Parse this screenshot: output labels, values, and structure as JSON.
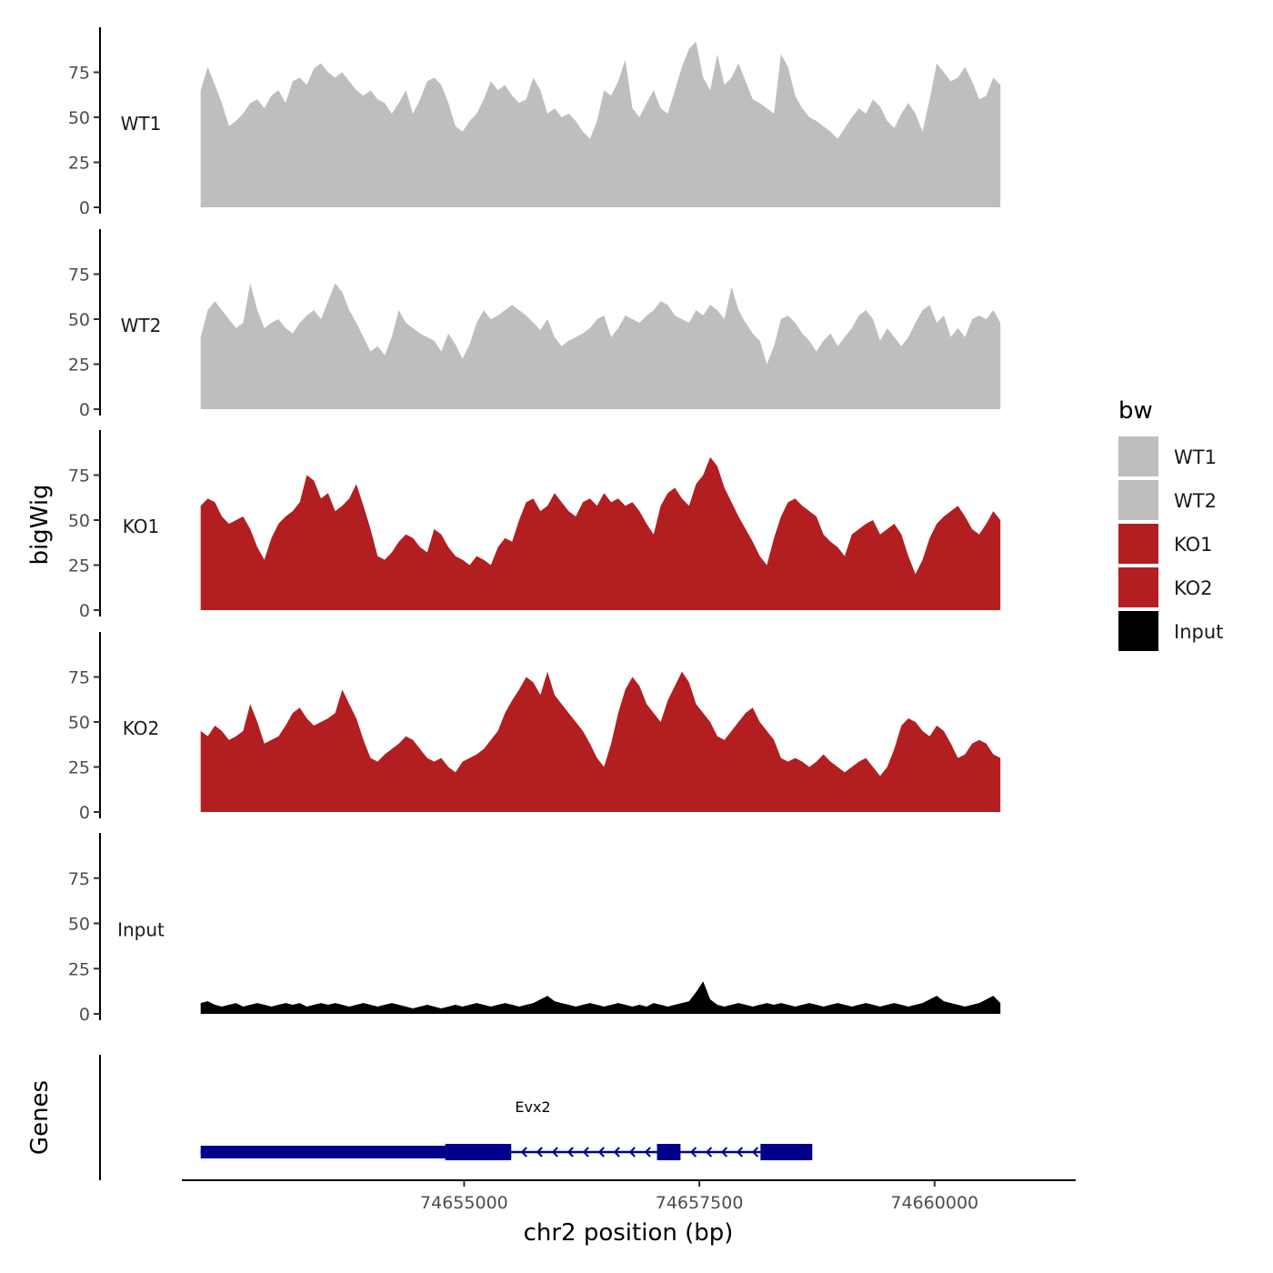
{
  "colors": {
    "wt": "#bebebe",
    "ko": "#b31e21",
    "input": "#000000",
    "gene": "#00008b",
    "axis": "#000000",
    "tick_text": "#4d4d4d"
  },
  "chart_data": {
    "type": "area",
    "xlabel": "chr2 position (bp)",
    "ylabel": "bigWig",
    "genes_label": "Genes",
    "xlim": [
      74652000,
      74661500
    ],
    "ylim": [
      0,
      100
    ],
    "x_ticks": [
      74655000,
      74657500,
      74660000
    ],
    "x_tick_labels": [
      "74655000",
      "74657500",
      "74660000"
    ],
    "y_ticks": [
      0,
      25,
      50,
      75
    ],
    "y_tick_labels": [
      "0",
      "25",
      "50",
      "75"
    ],
    "data_start": 74652200,
    "data_end": 74660700,
    "legend": {
      "title": "bw",
      "entries": [
        {
          "label": "WT1",
          "color": "#bebebe"
        },
        {
          "label": "WT2",
          "color": "#bebebe"
        },
        {
          "label": "KO1",
          "color": "#b31e21"
        },
        {
          "label": "KO2",
          "color": "#b31e21"
        },
        {
          "label": "Input",
          "color": "#000000"
        }
      ]
    },
    "series": [
      {
        "name": "WT1",
        "color": "#bebebe",
        "values": [
          65,
          78,
          68,
          58,
          45,
          48,
          52,
          58,
          60,
          55,
          62,
          65,
          58,
          70,
          72,
          68,
          77,
          80,
          75,
          72,
          75,
          70,
          65,
          62,
          65,
          60,
          58,
          52,
          58,
          65,
          52,
          60,
          70,
          72,
          68,
          58,
          45,
          42,
          48,
          52,
          60,
          70,
          65,
          68,
          62,
          58,
          60,
          72,
          65,
          52,
          55,
          50,
          52,
          48,
          42,
          38,
          48,
          65,
          62,
          70,
          82,
          55,
          50,
          58,
          65,
          55,
          52,
          65,
          78,
          88,
          92,
          72,
          65,
          85,
          68,
          72,
          80,
          70,
          60,
          58,
          55,
          52,
          85,
          78,
          62,
          55,
          50,
          48,
          45,
          42,
          38,
          44,
          50,
          55,
          52,
          60,
          56,
          48,
          44,
          52,
          58,
          52,
          42,
          60,
          80,
          75,
          70,
          72,
          78,
          70,
          60,
          62,
          72,
          68
        ]
      },
      {
        "name": "WT2",
        "color": "#bebebe",
        "values": [
          40,
          55,
          60,
          55,
          50,
          45,
          48,
          70,
          55,
          45,
          48,
          50,
          45,
          42,
          48,
          52,
          55,
          50,
          60,
          70,
          65,
          55,
          48,
          40,
          32,
          35,
          30,
          40,
          55,
          48,
          45,
          42,
          40,
          38,
          32,
          42,
          36,
          28,
          36,
          48,
          55,
          50,
          52,
          55,
          58,
          55,
          52,
          48,
          44,
          50,
          40,
          35,
          38,
          40,
          42,
          45,
          50,
          52,
          40,
          45,
          52,
          50,
          48,
          52,
          55,
          60,
          58,
          52,
          50,
          48,
          55,
          52,
          58,
          55,
          50,
          68,
          55,
          48,
          42,
          38,
          25,
          35,
          50,
          52,
          48,
          42,
          38,
          32,
          38,
          42,
          35,
          40,
          45,
          52,
          55,
          50,
          38,
          45,
          40,
          35,
          40,
          48,
          55,
          58,
          48,
          52,
          40,
          45,
          40,
          50,
          52,
          50,
          55,
          48
        ]
      },
      {
        "name": "KO1",
        "color": "#b31e21",
        "values": [
          58,
          62,
          60,
          52,
          48,
          50,
          52,
          45,
          35,
          28,
          40,
          48,
          52,
          55,
          60,
          75,
          72,
          62,
          65,
          55,
          58,
          62,
          70,
          58,
          45,
          30,
          28,
          32,
          38,
          42,
          40,
          35,
          32,
          45,
          42,
          35,
          30,
          28,
          25,
          30,
          28,
          25,
          35,
          40,
          38,
          50,
          60,
          62,
          55,
          58,
          65,
          60,
          55,
          52,
          60,
          62,
          58,
          65,
          60,
          62,
          58,
          60,
          55,
          48,
          42,
          58,
          65,
          68,
          62,
          58,
          70,
          75,
          85,
          80,
          68,
          60,
          52,
          45,
          38,
          30,
          25,
          40,
          52,
          60,
          62,
          58,
          55,
          52,
          42,
          38,
          35,
          30,
          42,
          45,
          48,
          50,
          42,
          45,
          48,
          42,
          30,
          20,
          28,
          40,
          48,
          52,
          55,
          58,
          52,
          45,
          42,
          48,
          55,
          50
        ]
      },
      {
        "name": "KO2",
        "color": "#b31e21",
        "values": [
          45,
          42,
          48,
          45,
          40,
          42,
          45,
          60,
          50,
          38,
          40,
          42,
          48,
          55,
          58,
          52,
          48,
          50,
          52,
          55,
          68,
          60,
          52,
          40,
          30,
          28,
          32,
          35,
          38,
          42,
          40,
          35,
          30,
          28,
          30,
          25,
          22,
          28,
          30,
          32,
          35,
          40,
          45,
          55,
          62,
          68,
          75,
          72,
          65,
          78,
          65,
          60,
          55,
          50,
          45,
          38,
          30,
          25,
          38,
          55,
          68,
          75,
          70,
          60,
          55,
          50,
          62,
          70,
          78,
          72,
          60,
          55,
          50,
          42,
          40,
          45,
          50,
          55,
          58,
          50,
          45,
          40,
          30,
          28,
          30,
          28,
          25,
          28,
          32,
          28,
          25,
          22,
          25,
          28,
          30,
          25,
          20,
          25,
          35,
          48,
          52,
          50,
          45,
          42,
          48,
          45,
          38,
          30,
          32,
          38,
          40,
          38,
          32,
          30
        ]
      },
      {
        "name": "Input",
        "color": "#000000",
        "values": [
          6,
          7,
          5,
          4,
          5,
          6,
          4,
          5,
          6,
          5,
          4,
          5,
          6,
          5,
          6,
          4,
          5,
          6,
          5,
          6,
          5,
          4,
          5,
          6,
          5,
          4,
          5,
          6,
          5,
          4,
          3,
          4,
          5,
          4,
          3,
          4,
          5,
          4,
          5,
          6,
          5,
          4,
          5,
          6,
          5,
          4,
          5,
          6,
          8,
          10,
          7,
          6,
          5,
          4,
          5,
          6,
          5,
          4,
          5,
          6,
          5,
          4,
          5,
          4,
          6,
          5,
          4,
          5,
          6,
          7,
          12,
          18,
          8,
          5,
          4,
          5,
          6,
          5,
          4,
          5,
          6,
          5,
          6,
          5,
          4,
          5,
          6,
          5,
          4,
          5,
          6,
          5,
          4,
          5,
          6,
          5,
          4,
          5,
          6,
          5,
          4,
          5,
          6,
          8,
          10,
          7,
          6,
          5,
          4,
          5,
          6,
          8,
          10,
          6
        ]
      }
    ],
    "gene": {
      "name": "Evx2",
      "strand": "-",
      "start": 74652200,
      "end": 74658700,
      "exons": [
        {
          "start": 74652200,
          "end": 74655500,
          "type": "utr"
        },
        {
          "start": 74654800,
          "end": 74655500,
          "type": "cds"
        },
        {
          "start": 74657050,
          "end": 74657300,
          "type": "cds"
        },
        {
          "start": 74658150,
          "end": 74658700,
          "type": "cds"
        }
      ]
    }
  }
}
